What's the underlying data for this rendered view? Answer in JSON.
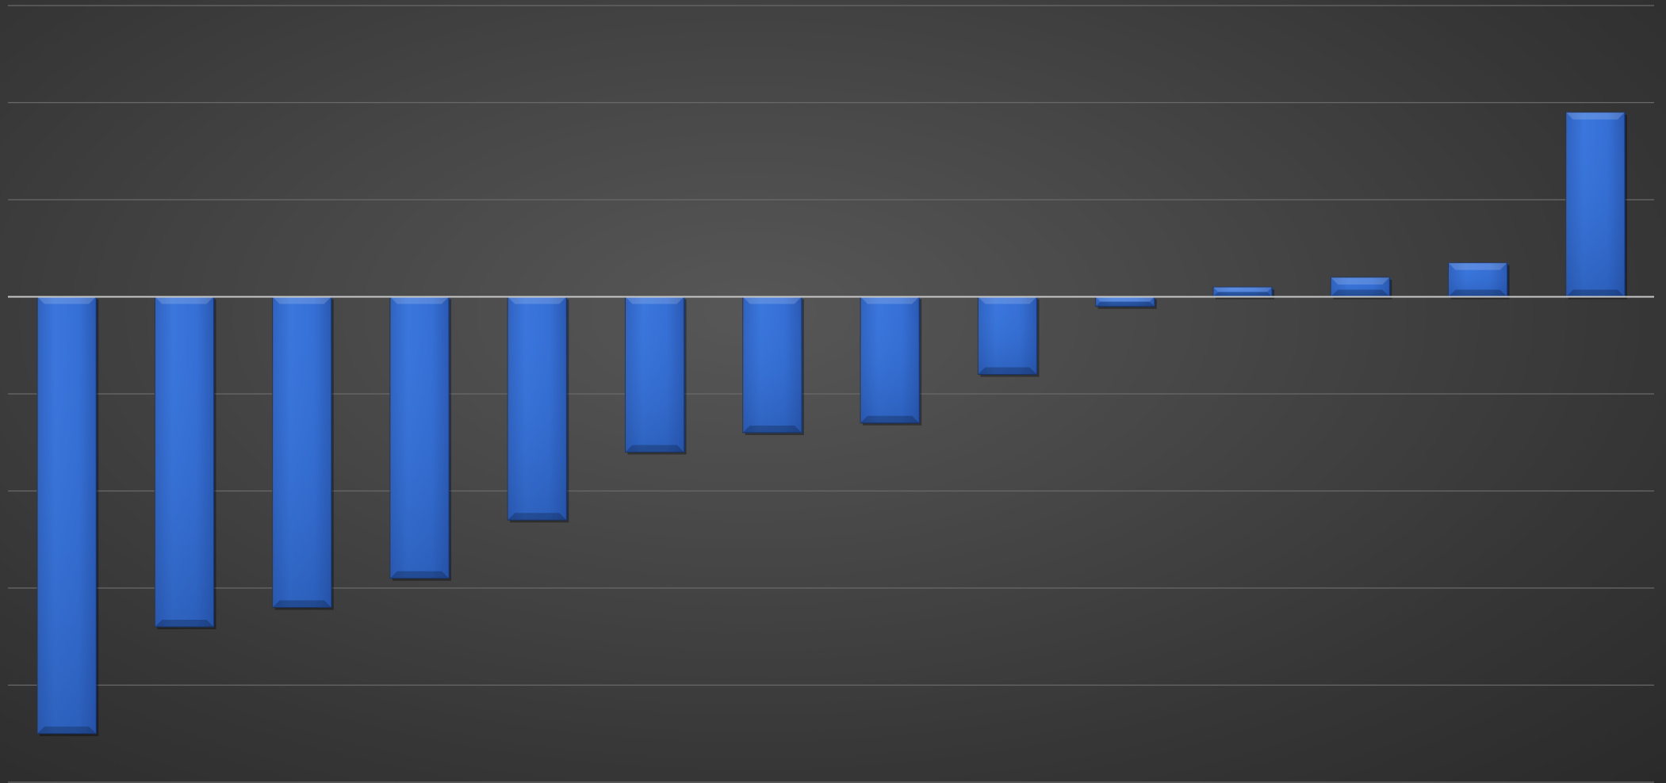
{
  "chart_data": {
    "type": "bar",
    "title": "",
    "xlabel": "",
    "ylabel": "",
    "categories": [
      "",
      "",
      "",
      "",
      "",
      "",
      "",
      "",
      "",
      "",
      "",
      "",
      "",
      ""
    ],
    "series": [
      {
        "values": [
          -4.5,
          -3.4,
          -3.2,
          -2.9,
          -2.3,
          -1.6,
          -1.4,
          -1.3,
          -0.8,
          -0.1,
          0.1,
          0.2,
          0.35,
          1.9
        ]
      }
    ],
    "ylim": [
      -5,
      3
    ],
    "grid": true,
    "legend": "none",
    "colors": {
      "bar": "#3a74d8",
      "bar_dark": "#2a56a8",
      "gridline": "#6a6a6a",
      "baseline": "#c8c8c8",
      "background": "#454545"
    }
  }
}
